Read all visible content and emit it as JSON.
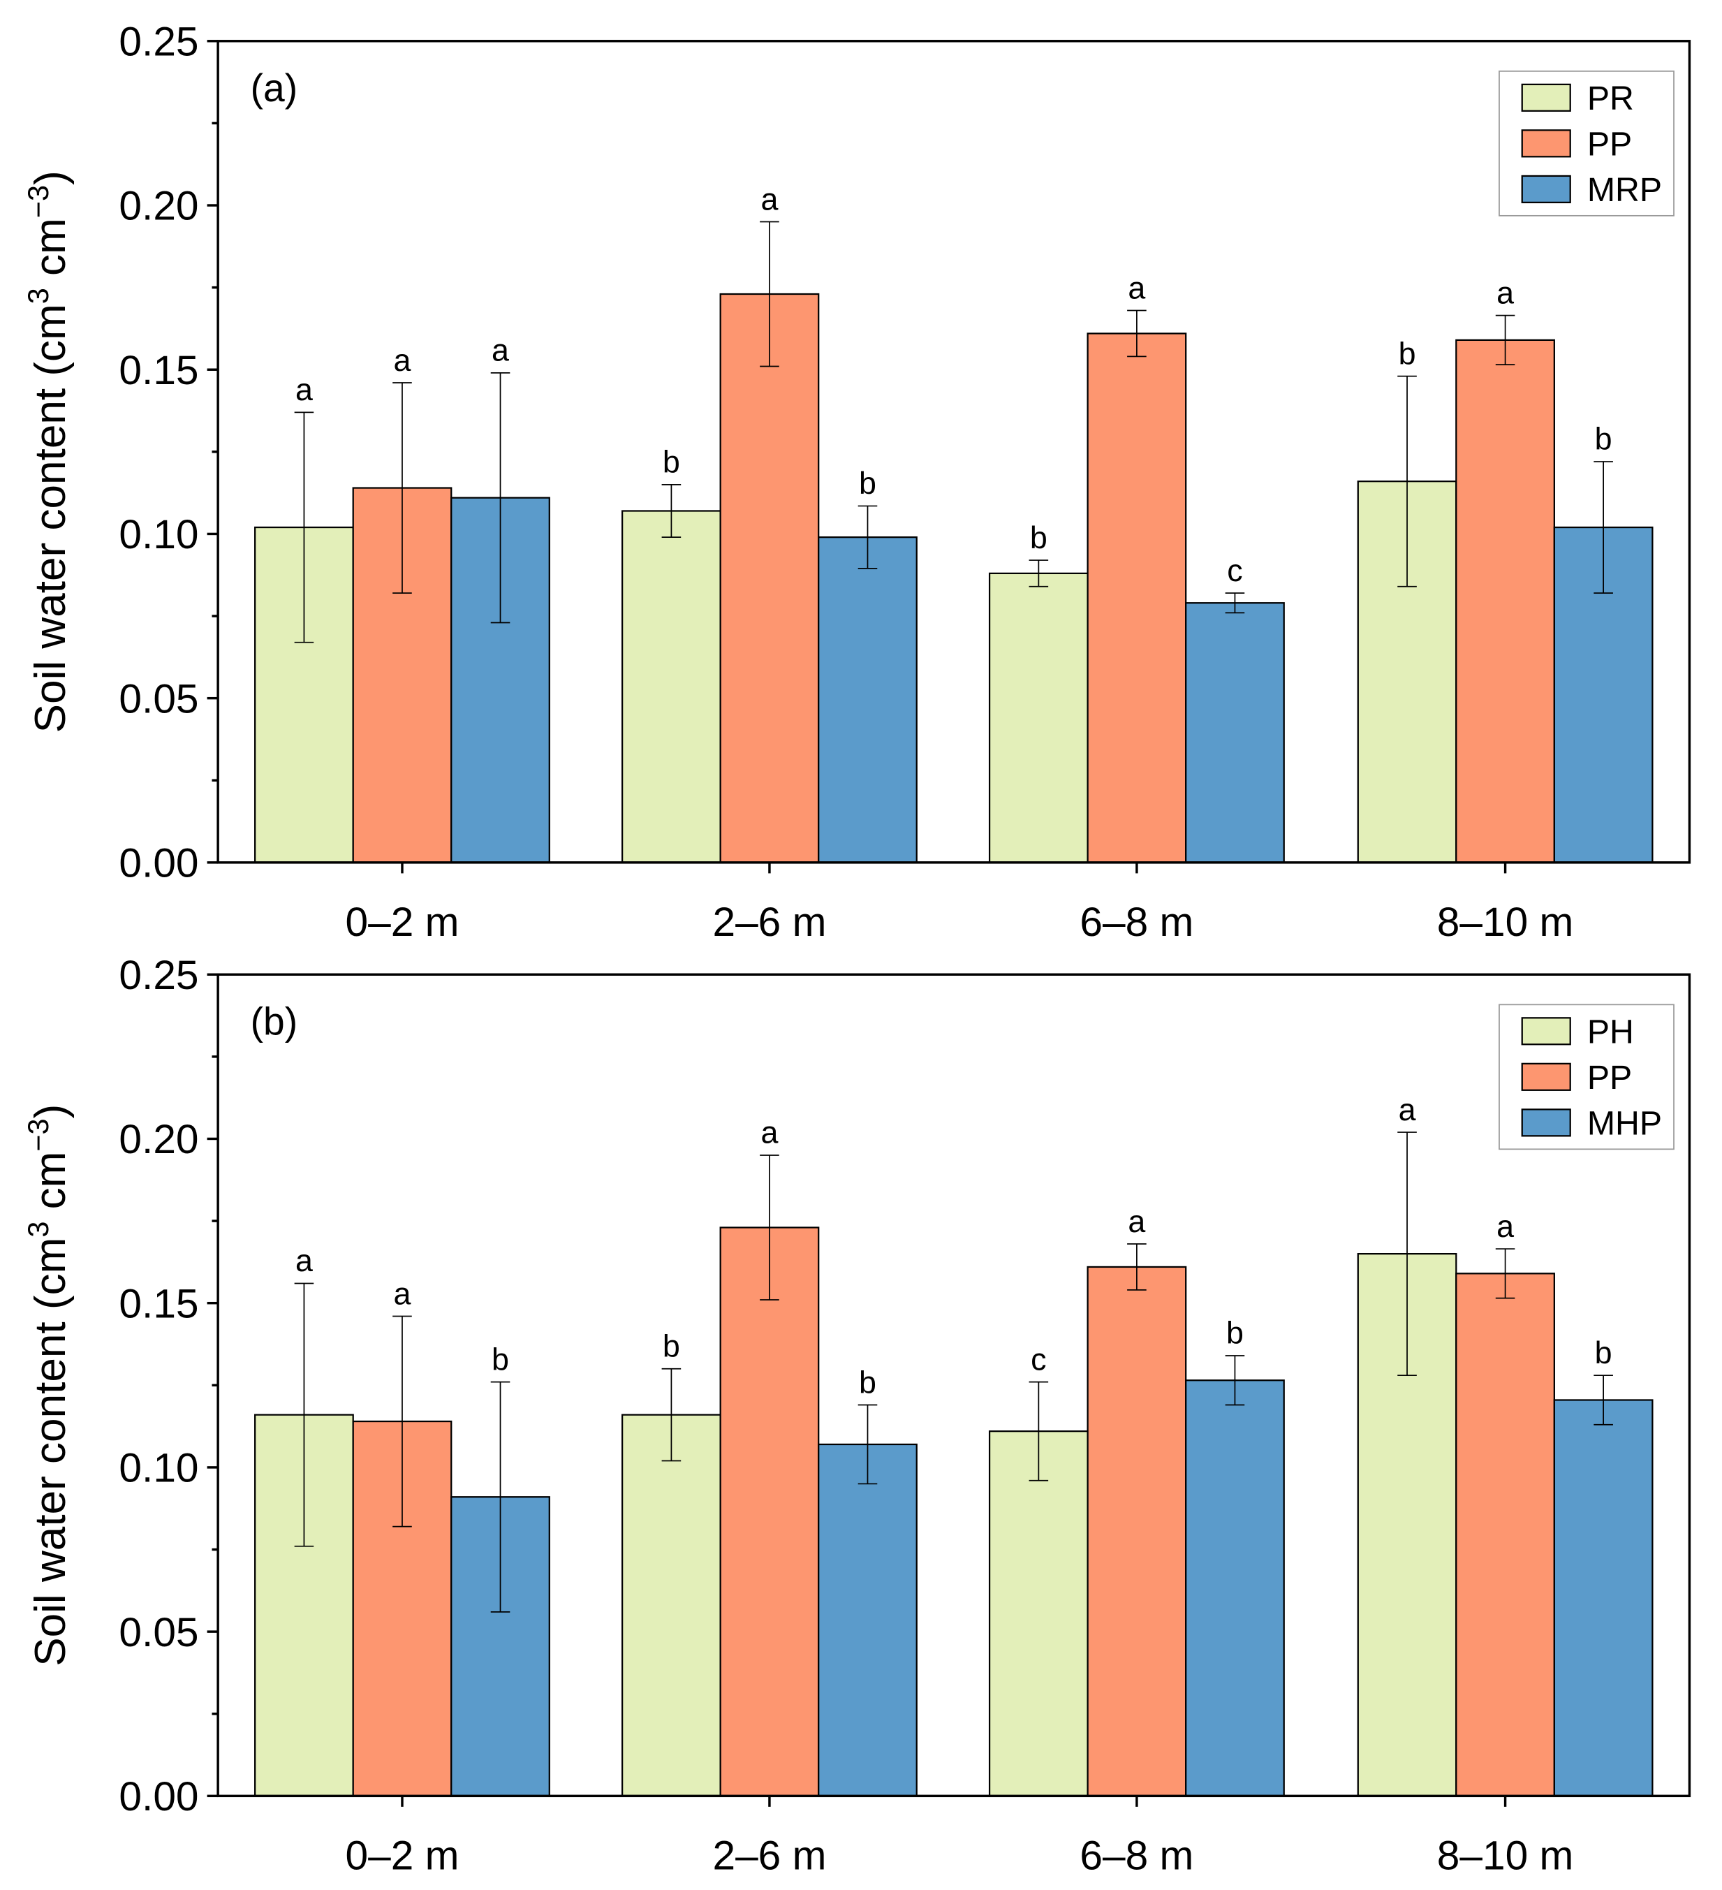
{
  "chart_data": [
    {
      "type": "bar",
      "panel_label": "(a)",
      "ylabel": "Soil water content (cm3 cm-3)",
      "ylabel_parts": {
        "main": "Soil water content (cm",
        "sup1": "3",
        "mid": " cm",
        "sup2": "−3",
        "end": ")"
      },
      "ylim": [
        0,
        0.25
      ],
      "yticks": [
        "0.00",
        "0.05",
        "0.10",
        "0.15",
        "0.20",
        "0.25"
      ],
      "categories": [
        "0–2 m",
        "2–6 m",
        "6–8 m",
        "8–10 m"
      ],
      "legend_position": "top-right",
      "series": [
        {
          "name": "PR",
          "color": "#e3efb9",
          "values": [
            0.102,
            0.107,
            0.088,
            0.116
          ],
          "errors": [
            0.035,
            0.008,
            0.004,
            0.032
          ],
          "letters": [
            "a",
            "b",
            "b",
            "b"
          ]
        },
        {
          "name": "PP",
          "color": "#fd9670",
          "values": [
            0.114,
            0.173,
            0.161,
            0.159
          ],
          "errors": [
            0.032,
            0.022,
            0.007,
            0.0075
          ],
          "letters": [
            "a",
            "a",
            "a",
            "a"
          ]
        },
        {
          "name": "MRP",
          "color": "#5b9bcb",
          "values": [
            0.111,
            0.099,
            0.079,
            0.102
          ],
          "errors": [
            0.038,
            0.0095,
            0.003,
            0.02
          ],
          "letters": [
            "a",
            "b",
            "c",
            "b"
          ]
        }
      ]
    },
    {
      "type": "bar",
      "panel_label": "(b)",
      "ylabel": "Soil water content (cm3 cm-3)",
      "ylabel_parts": {
        "main": "Soil water content (cm",
        "sup1": "3",
        "mid": " cm",
        "sup2": "−3",
        "end": ")"
      },
      "ylim": [
        0,
        0.25
      ],
      "yticks": [
        "0.00",
        "0.05",
        "0.10",
        "0.15",
        "0.20",
        "0.25"
      ],
      "categories": [
        "0–2 m",
        "2–6 m",
        "6–8 m",
        "8–10 m"
      ],
      "legend_position": "top-right",
      "series": [
        {
          "name": "PH",
          "color": "#e3efb9",
          "values": [
            0.116,
            0.116,
            0.111,
            0.165
          ],
          "errors": [
            0.04,
            0.014,
            0.015,
            0.037
          ],
          "letters": [
            "a",
            "b",
            "c",
            "a"
          ]
        },
        {
          "name": "PP",
          "color": "#fd9670",
          "values": [
            0.114,
            0.173,
            0.161,
            0.159
          ],
          "errors": [
            0.032,
            0.022,
            0.007,
            0.0075
          ],
          "letters": [
            "a",
            "a",
            "a",
            "a"
          ]
        },
        {
          "name": "MHP",
          "color": "#5b9bcb",
          "values": [
            0.091,
            0.107,
            0.1265,
            0.1205
          ],
          "errors": [
            0.035,
            0.012,
            0.0075,
            0.0075
          ],
          "letters": [
            "b",
            "b",
            "b",
            "b"
          ]
        }
      ]
    }
  ]
}
